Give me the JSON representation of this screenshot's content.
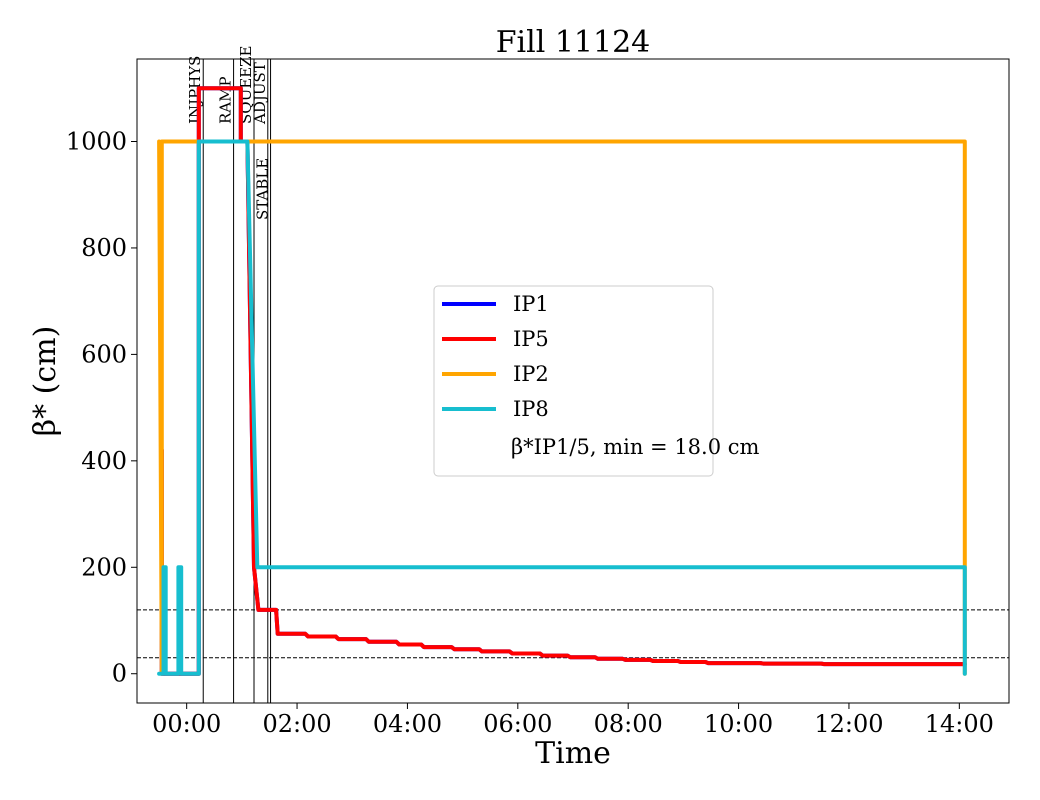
{
  "chart_data": {
    "type": "line",
    "title": "Fill 11124",
    "xlabel": "Time",
    "ylabel": "β* (cm)",
    "xlim": [
      -0.9,
      14.9
    ],
    "ylim": [
      -55,
      1155
    ],
    "grid": false,
    "legend_placement": "center",
    "x_ticks": [
      {
        "value": 0,
        "label": "00:00"
      },
      {
        "value": 2,
        "label": "02:00"
      },
      {
        "value": 4,
        "label": "04:00"
      },
      {
        "value": 6,
        "label": "06:00"
      },
      {
        "value": 8,
        "label": "08:00"
      },
      {
        "value": 10,
        "label": "10:00"
      },
      {
        "value": 12,
        "label": "12:00"
      },
      {
        "value": 14,
        "label": "14:00"
      }
    ],
    "y_ticks": [
      {
        "value": 0,
        "label": "0"
      },
      {
        "value": 200,
        "label": "200"
      },
      {
        "value": 400,
        "label": "400"
      },
      {
        "value": 600,
        "label": "600"
      },
      {
        "value": 800,
        "label": "800"
      },
      {
        "value": 1000,
        "label": "1000"
      }
    ],
    "phases": [
      {
        "label": "INJPHYS",
        "x": 0.3
      },
      {
        "label": "RAMP",
        "x": 0.85
      },
      {
        "label": "SQUEEZE",
        "x": 1.22
      },
      {
        "label": "ADJUST",
        "x": 1.47
      },
      {
        "label": "STABLE",
        "x": 1.52
      }
    ],
    "reference_lines": [
      120,
      30
    ],
    "series": [
      {
        "name": "IP1",
        "color": "#0000ff",
        "points": [
          [
            -0.45,
            420
          ],
          [
            -0.45,
            0
          ],
          [
            0.22,
            0
          ],
          [
            0.22,
            1100
          ],
          [
            0.98,
            1100
          ],
          [
            0.98,
            1000
          ],
          [
            1.1,
            1000
          ],
          [
            1.22,
            200
          ],
          [
            1.3,
            120
          ],
          [
            1.62,
            120
          ],
          [
            1.65,
            75
          ],
          [
            2.15,
            75
          ],
          [
            2.2,
            70
          ],
          [
            2.7,
            70
          ],
          [
            2.75,
            65
          ],
          [
            3.25,
            65
          ],
          [
            3.3,
            60
          ],
          [
            3.8,
            60
          ],
          [
            3.85,
            55
          ],
          [
            4.25,
            55
          ],
          [
            4.3,
            50
          ],
          [
            4.8,
            50
          ],
          [
            4.85,
            46
          ],
          [
            5.3,
            46
          ],
          [
            5.35,
            42
          ],
          [
            5.85,
            42
          ],
          [
            5.9,
            38
          ],
          [
            6.4,
            38
          ],
          [
            6.45,
            34
          ],
          [
            6.9,
            34
          ],
          [
            6.95,
            31
          ],
          [
            7.4,
            31
          ],
          [
            7.45,
            28
          ],
          [
            7.9,
            28
          ],
          [
            7.95,
            26
          ],
          [
            8.4,
            26
          ],
          [
            8.45,
            24
          ],
          [
            8.9,
            24
          ],
          [
            8.95,
            22
          ],
          [
            9.4,
            22
          ],
          [
            9.45,
            20
          ],
          [
            10.4,
            20
          ],
          [
            10.45,
            19
          ],
          [
            11.5,
            19
          ],
          [
            11.55,
            18
          ],
          [
            14.1,
            18
          ]
        ]
      },
      {
        "name": "IP5",
        "color": "#ff0000",
        "points": [
          [
            -0.45,
            420
          ],
          [
            -0.45,
            0
          ],
          [
            0.22,
            0
          ],
          [
            0.22,
            1100
          ],
          [
            0.98,
            1100
          ],
          [
            0.98,
            1000
          ],
          [
            1.1,
            1000
          ],
          [
            1.22,
            200
          ],
          [
            1.3,
            120
          ],
          [
            1.62,
            120
          ],
          [
            1.65,
            75
          ],
          [
            2.15,
            75
          ],
          [
            2.2,
            70
          ],
          [
            2.7,
            70
          ],
          [
            2.75,
            65
          ],
          [
            3.25,
            65
          ],
          [
            3.3,
            60
          ],
          [
            3.8,
            60
          ],
          [
            3.85,
            55
          ],
          [
            4.25,
            55
          ],
          [
            4.3,
            50
          ],
          [
            4.8,
            50
          ],
          [
            4.85,
            46
          ],
          [
            5.3,
            46
          ],
          [
            5.35,
            42
          ],
          [
            5.85,
            42
          ],
          [
            5.9,
            38
          ],
          [
            6.4,
            38
          ],
          [
            6.45,
            34
          ],
          [
            6.9,
            34
          ],
          [
            6.95,
            31
          ],
          [
            7.4,
            31
          ],
          [
            7.45,
            28
          ],
          [
            7.9,
            28
          ],
          [
            7.95,
            26
          ],
          [
            8.4,
            26
          ],
          [
            8.45,
            24
          ],
          [
            8.9,
            24
          ],
          [
            8.95,
            22
          ],
          [
            9.4,
            22
          ],
          [
            9.45,
            20
          ],
          [
            10.4,
            20
          ],
          [
            10.45,
            19
          ],
          [
            11.5,
            19
          ],
          [
            11.55,
            18
          ],
          [
            14.1,
            18
          ]
        ]
      },
      {
        "name": "IP2",
        "color": "#ffa500",
        "points": [
          [
            -0.5,
            1000
          ],
          [
            -0.45,
            0
          ],
          [
            -0.45,
            1000
          ],
          [
            14.1,
            1000
          ],
          [
            14.1,
            200
          ],
          [
            14.1,
            0
          ]
        ]
      },
      {
        "name": "IP8",
        "color": "#17becf",
        "points": [
          [
            -0.5,
            0
          ],
          [
            -0.42,
            0
          ],
          [
            -0.42,
            200
          ],
          [
            -0.38,
            200
          ],
          [
            -0.38,
            0
          ],
          [
            -0.15,
            0
          ],
          [
            -0.15,
            200
          ],
          [
            -0.1,
            200
          ],
          [
            -0.1,
            0
          ],
          [
            0.22,
            0
          ],
          [
            0.22,
            1000
          ],
          [
            1.1,
            1000
          ],
          [
            1.28,
            200
          ],
          [
            14.1,
            200
          ],
          [
            14.1,
            0
          ]
        ]
      }
    ],
    "annotation": "β*IP1/5, min = 18.0 cm"
  }
}
